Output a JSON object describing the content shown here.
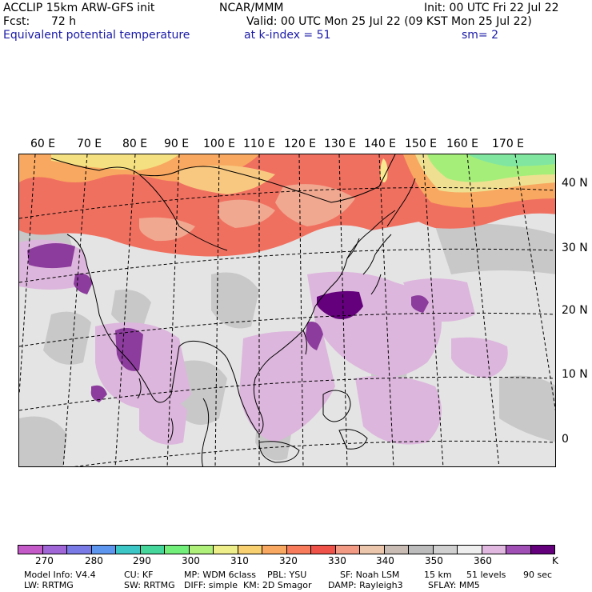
{
  "header": {
    "model_line": "ACCLIP 15km ARW-GFS init",
    "center": "NCAR/MMM",
    "init": "Init: 00 UTC Fri 22 Jul 22",
    "fcst_label": "Fcst:",
    "fcst_value": "72 h",
    "valid": "Valid: 00 UTC Mon 25 Jul 22 (09 KST Mon 25 Jul 22)",
    "field": "Equivalent potential temperature",
    "level": "at k-index =  51",
    "smooth": "sm= 2"
  },
  "map": {
    "longitude_labels": [
      "60 E",
      "70 E",
      "80 E",
      "90 E",
      "100 E",
      "110 E",
      "120 E",
      "130 E",
      "140 E",
      "150 E",
      "160 E",
      "170 E"
    ],
    "latitude_labels": [
      "40 N",
      "30 N",
      "20 N",
      "10 N",
      "0"
    ]
  },
  "colorbar": {
    "colors": [
      "#c35ac8",
      "#a066d8",
      "#7a7ae6",
      "#5c96ee",
      "#3cc6c6",
      "#44d69a",
      "#72ee7a",
      "#aef07a",
      "#eeee8a",
      "#f8d070",
      "#f8a860",
      "#f87c5c",
      "#ee5248",
      "#f39a84",
      "#ecc6ac",
      "#c8bcb4",
      "#bcbcbc",
      "#d0d0d0",
      "#eeeeee",
      "#e0b8e0",
      "#a050b4",
      "#64007c"
    ],
    "tick_labels": [
      "270",
      "280",
      "290",
      "300",
      "310",
      "320",
      "330",
      "340",
      "350",
      "360"
    ],
    "unit": "K"
  },
  "footer": {
    "line1": [
      "Model Info: V4.4",
      "CU: KF",
      "MP: WDM 6class",
      "PBL: YSU",
      "SF: Noah LSM",
      "15 km",
      "51 levels",
      "90 sec"
    ],
    "line2": [
      "LW: RRTMG",
      "SW: RRTMG",
      "DIFF: simple",
      "KM: 2D Smagor",
      "DAMP: Rayleigh3",
      "SFLAY: MM5"
    ]
  }
}
